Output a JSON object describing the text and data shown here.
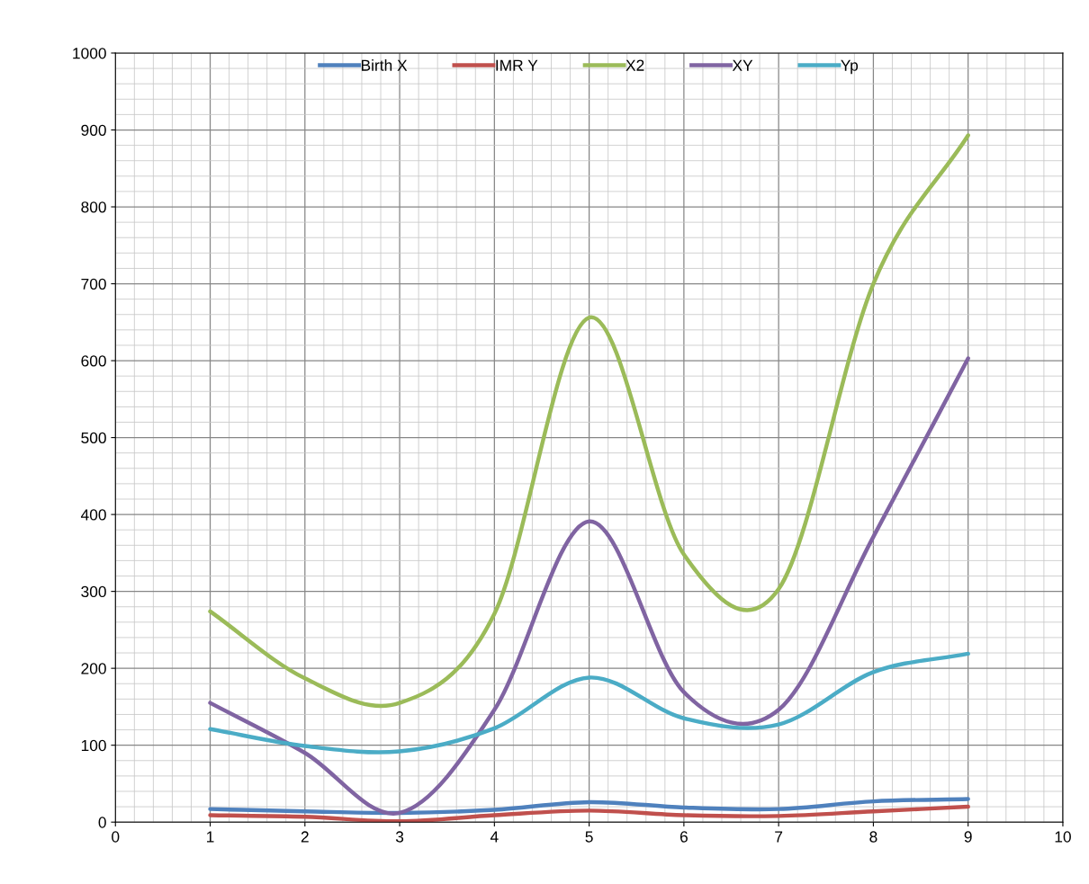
{
  "chart_data": {
    "type": "line",
    "x": [
      1,
      2,
      3,
      4,
      5,
      6,
      7,
      8,
      9
    ],
    "series": [
      {
        "name": "Birth X",
        "color": "#4f81bd",
        "values": [
          17,
          14,
          12,
          16,
          26,
          19,
          17,
          27,
          30
        ]
      },
      {
        "name": "IMR Y",
        "color": "#c0504d",
        "values": [
          9,
          7,
          1,
          9,
          15,
          9,
          8,
          14,
          20
        ]
      },
      {
        "name": "X2",
        "color": "#9bbb59",
        "values": [
          274,
          187,
          155,
          271,
          656,
          348,
          303,
          700,
          893
        ]
      },
      {
        "name": "XY",
        "color": "#8064a2",
        "values": [
          155,
          90,
          12,
          146,
          391,
          169,
          146,
          371,
          603
        ]
      },
      {
        "name": "Yp",
        "color": "#4bacc6",
        "values": [
          121,
          99,
          92,
          122,
          188,
          135,
          127,
          195,
          219
        ]
      }
    ],
    "xlim": [
      0,
      10
    ],
    "xticks": [
      0,
      1,
      2,
      3,
      4,
      5,
      6,
      7,
      8,
      9,
      10
    ],
    "ylim": [
      0,
      1000
    ],
    "yticks": [
      0,
      100,
      200,
      300,
      400,
      500,
      600,
      700,
      800,
      900,
      1000
    ],
    "grid": true,
    "legend": "top",
    "marker": "none",
    "line_style": "solid"
  }
}
